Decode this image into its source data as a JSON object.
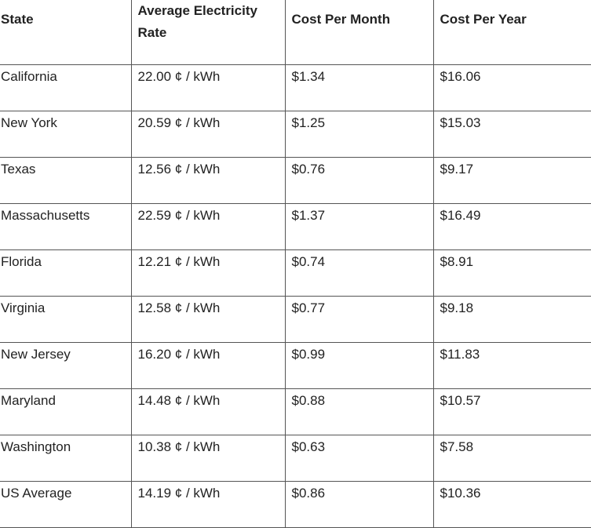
{
  "table": {
    "headers": [
      "State",
      "Average Electricity Rate",
      "Cost Per Month",
      "Cost Per Year"
    ],
    "rows": [
      [
        "California",
        "22.00 ¢ / kWh",
        "$1.34",
        "$16.06"
      ],
      [
        "New York",
        "20.59 ¢ / kWh",
        "$1.25",
        "$15.03"
      ],
      [
        "Texas",
        "12.56 ¢ / kWh",
        "$0.76",
        "$9.17"
      ],
      [
        "Massachusetts",
        "22.59 ¢ / kWh",
        "$1.37",
        "$16.49"
      ],
      [
        "Florida",
        "12.21 ¢ / kWh",
        "$0.74",
        "$8.91"
      ],
      [
        "Virginia",
        "12.58 ¢ / kWh",
        "$0.77",
        "$9.18"
      ],
      [
        "New Jersey",
        "16.20 ¢ / kWh",
        "$0.99",
        "$11.83"
      ],
      [
        "Maryland",
        "14.48 ¢ / kWh",
        "$0.88",
        "$10.57"
      ],
      [
        "Washington",
        "10.38 ¢ / kWh",
        "$0.63",
        "$7.58"
      ],
      [
        "US Average",
        "14.19 ¢ / kWh",
        "$0.86",
        "$10.36"
      ]
    ]
  }
}
